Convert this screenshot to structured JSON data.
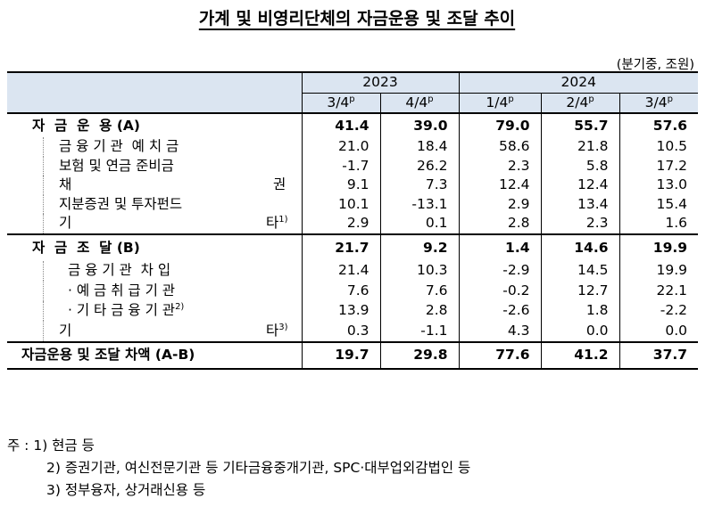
{
  "title": "가계 및 비영리단체의 자금운용 및 조달 추이",
  "unit": "(분기중, 조원)",
  "years": [
    "2023",
    "2024"
  ],
  "quarters": [
    "3/4",
    "4/4",
    "1/4",
    "2/4",
    "3/4"
  ],
  "quarter_sup": "p",
  "rows": [
    {
      "label": "자  금  운  용 (A)",
      "values": [
        "41.4",
        "39.0",
        "79.0",
        "55.7",
        "57.6"
      ],
      "bold": true
    },
    {
      "label": "금 융 기 관  예 치 금",
      "values": [
        "21.0",
        "18.4",
        "58.6",
        "21.8",
        "10.5"
      ]
    },
    {
      "label": "보험 및 연금 준비금",
      "values": [
        "-1.7",
        "26.2",
        "2.3",
        "5.8",
        "17.2"
      ]
    },
    {
      "label": "채",
      "label_right": "권",
      "values": [
        "9.1",
        "7.3",
        "12.4",
        "12.4",
        "13.0"
      ]
    },
    {
      "label": "지분증권 및 투자펀드",
      "values": [
        "10.1",
        "-13.1",
        "2.9",
        "13.4",
        "15.4"
      ]
    },
    {
      "label": "기",
      "label_right": "타",
      "label_sup": "1)",
      "values": [
        "2.9",
        "0.1",
        "2.8",
        "2.3",
        "1.6"
      ]
    },
    {
      "label": "자  금  조  달 (B)",
      "values": [
        "21.7",
        "9.2",
        "1.4",
        "14.6",
        "19.9"
      ],
      "bold": true
    },
    {
      "label": "금 융 기 관  차 입",
      "values": [
        "21.4",
        "10.3",
        "-2.9",
        "14.5",
        "19.9"
      ]
    },
    {
      "label": "· 예 금 취 급 기 관",
      "values": [
        "7.6",
        "7.6",
        "-0.2",
        "12.7",
        "22.1"
      ]
    },
    {
      "label": "· 기 타 금 융 기 관",
      "label_sup": "2)",
      "values": [
        "13.9",
        "2.8",
        "-2.6",
        "1.8",
        "-2.2"
      ]
    },
    {
      "label": "기",
      "label_right": "타",
      "label_sup": "3)",
      "values": [
        "0.3",
        "-1.1",
        "4.3",
        "0.0",
        "0.0"
      ]
    },
    {
      "label": "자금운용 및 조달 차액 (A-B)",
      "values": [
        "19.7",
        "29.8",
        "77.6",
        "41.2",
        "37.7"
      ],
      "bold": true
    }
  ],
  "notes": [
    "주 : 1) 현금 등",
    "2) 증권기관, 여신전문기관 등 기타금융중개기관, SPC·대부업외감법인 등",
    "3) 정부융자, 상거래신용 등"
  ]
}
